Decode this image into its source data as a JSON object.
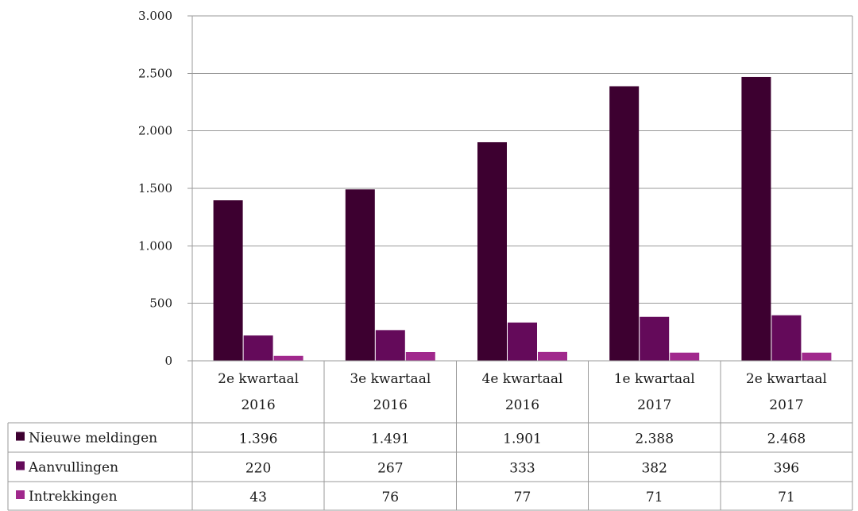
{
  "chart_data": {
    "type": "bar",
    "categories": [
      [
        "2e kwartaal",
        "2016"
      ],
      [
        "3e kwartaal",
        "2016"
      ],
      [
        "4e kwartaal",
        "2016"
      ],
      [
        "1e kwartaal",
        "2017"
      ],
      [
        "2e kwartaal",
        "2017"
      ]
    ],
    "series": [
      {
        "name": "Nieuwe meldingen",
        "color": "#3d0030",
        "values": [
          1396,
          1491,
          1901,
          2388,
          2468
        ],
        "labels": [
          "1.396",
          "1.491",
          "1.901",
          "2.388",
          "2.468"
        ]
      },
      {
        "name": "Aanvullingen",
        "color": "#640a5a",
        "values": [
          220,
          267,
          333,
          382,
          396
        ],
        "labels": [
          "220",
          "267",
          "333",
          "382",
          "396"
        ]
      },
      {
        "name": "Intrekkingen",
        "color": "#a0288c",
        "values": [
          43,
          76,
          77,
          71,
          71
        ],
        "labels": [
          "43",
          "76",
          "77",
          "71",
          "71"
        ]
      }
    ],
    "ylim": [
      0,
      3000
    ],
    "yticks": [
      {
        "value": 0,
        "label": "0"
      },
      {
        "value": 500,
        "label": "500"
      },
      {
        "value": 1000,
        "label": "1.000"
      },
      {
        "value": 1500,
        "label": "1.500"
      },
      {
        "value": 2000,
        "label": "2.000"
      },
      {
        "value": 2500,
        "label": "2.500"
      },
      {
        "value": 3000,
        "label": "3.000"
      }
    ],
    "grid": true,
    "legend": "data-table",
    "gridline_color": "#9a9a9a"
  }
}
